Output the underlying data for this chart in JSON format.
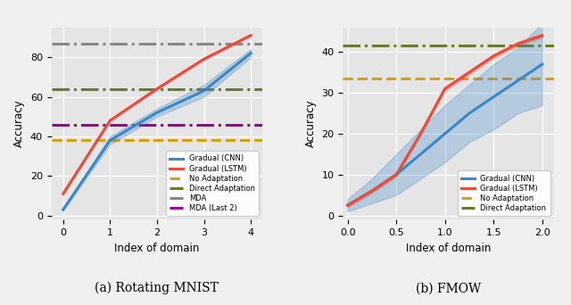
{
  "panel_a": {
    "title": "(a) Rotating MNIST",
    "xlabel": "Index of domain",
    "ylabel": "Accuracy",
    "xlim": [
      -0.25,
      4.25
    ],
    "ylim": [
      -2,
      95
    ],
    "cnn_x": [
      0,
      1,
      2,
      3,
      4
    ],
    "cnn_y": [
      3,
      38,
      52,
      63,
      82
    ],
    "cnn_y_lo": [
      2.5,
      36,
      50,
      60,
      80
    ],
    "cnn_y_hi": [
      3.5,
      40,
      54,
      66,
      84
    ],
    "lstm_x": [
      0,
      1,
      2,
      3,
      4
    ],
    "lstm_y": [
      11,
      48,
      64,
      79,
      91
    ],
    "lstm_y_lo": [
      10.5,
      47.5,
      63.5,
      78.5,
      90.5
    ],
    "lstm_y_hi": [
      11.5,
      48.5,
      64.5,
      79.5,
      91.5
    ],
    "no_adapt": 38,
    "direct_adapt": 64,
    "mda": 87,
    "mda_last2": 46,
    "cnn_color": "#3a87c8",
    "lstm_color": "#e84c3d",
    "no_adapt_color": "#d4a017",
    "direct_adapt_color": "#6b7a2e",
    "mda_color": "#888888",
    "mda_last2_color": "#9b009b",
    "xticks": [
      0,
      1,
      2,
      3,
      4
    ],
    "yticks": [
      0,
      20,
      40,
      60,
      80
    ]
  },
  "panel_b": {
    "title": "(b) FMOW",
    "xlabel": "Index of domain",
    "ylabel": "Accuracy",
    "xlim": [
      -0.05,
      2.12
    ],
    "ylim": [
      -1,
      46
    ],
    "cnn_x": [
      0.0,
      0.25,
      0.5,
      0.75,
      1.0,
      1.25,
      1.5,
      1.75,
      2.0
    ],
    "cnn_y": [
      2.5,
      6,
      10,
      15,
      20,
      25,
      29,
      33,
      37
    ],
    "cnn_y_lo": [
      1.0,
      3,
      5,
      9,
      13,
      18,
      21,
      25,
      27
    ],
    "cnn_y_hi": [
      4.0,
      9,
      15,
      21,
      27,
      32,
      37,
      41,
      47
    ],
    "lstm_x": [
      0.0,
      0.25,
      0.5,
      0.75,
      1.0,
      1.25,
      1.5,
      1.75,
      2.0
    ],
    "lstm_y": [
      2.5,
      6,
      10,
      20,
      31,
      35,
      39,
      42,
      44
    ],
    "lstm_y_lo": [
      2.0,
      5.5,
      9.5,
      19.5,
      30.5,
      34.5,
      38.5,
      41.5,
      43.5
    ],
    "lstm_y_hi": [
      3.0,
      6.5,
      10.5,
      20.5,
      31.5,
      35.5,
      39.5,
      42.5,
      44.5
    ],
    "no_adapt": 33.5,
    "direct_adapt": 41.5,
    "cnn_color": "#3a87c8",
    "lstm_color": "#e84c3d",
    "no_adapt_color": "#d4a017",
    "direct_adapt_color": "#6b7a2e",
    "xticks": [
      0.0,
      0.5,
      1.0,
      1.5,
      2.0
    ],
    "yticks": [
      0,
      10,
      20,
      30,
      40
    ]
  },
  "bg_color": "#e5e5e5",
  "linewidth": 2.2,
  "band_alpha": 0.28
}
